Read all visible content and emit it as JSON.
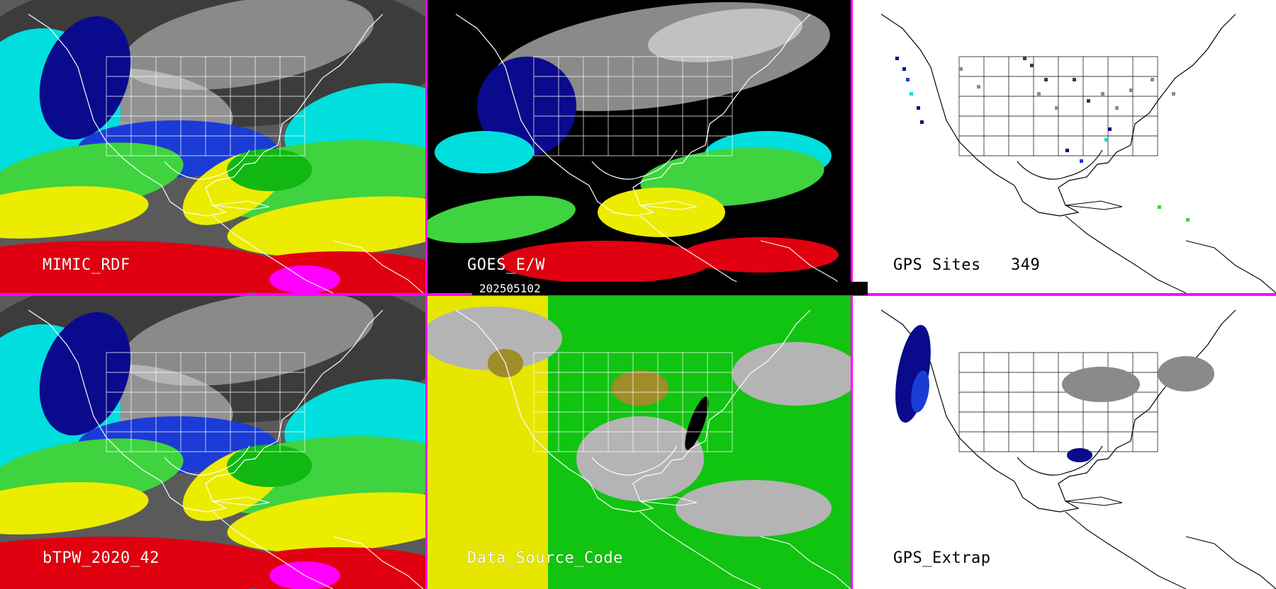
{
  "viewer": {
    "timestamp": "202505102",
    "colors": {
      "divider": "#ff00ff",
      "timebar_bg": "#000000",
      "map_outline_dark": "#ffffff",
      "map_outline_light": "#000000"
    },
    "panels": [
      {
        "id": "mimic-rdf",
        "label": "MIMIC_RDF",
        "style": "tpw-full"
      },
      {
        "id": "goes-ew",
        "label": "GOES_E/W",
        "style": "tpw-goes"
      },
      {
        "id": "gps-sites",
        "label": "GPS Sites",
        "count": "349",
        "style": "gps-sites"
      },
      {
        "id": "btpw",
        "label": "bTPW_2020_42",
        "style": "tpw-full"
      },
      {
        "id": "data-source",
        "label": "Data_Source_Code",
        "style": "source-code"
      },
      {
        "id": "gps-extrap",
        "label": "GPS_Extrap",
        "style": "gps-extrap"
      }
    ],
    "tpw_palette": [
      "#3c3c3c",
      "#8a8a8a",
      "#d8d8d8",
      "#0a0a8c",
      "#1b3bd6",
      "#00dede",
      "#3fd33f",
      "#11b811",
      "#ecec00",
      "#d5a000",
      "#e00010",
      "#b4003c",
      "#ff00ff"
    ],
    "source_palette": [
      "#b4b4b4",
      "#e6e600",
      "#11c411",
      "#a08c28",
      "#000000"
    ]
  }
}
